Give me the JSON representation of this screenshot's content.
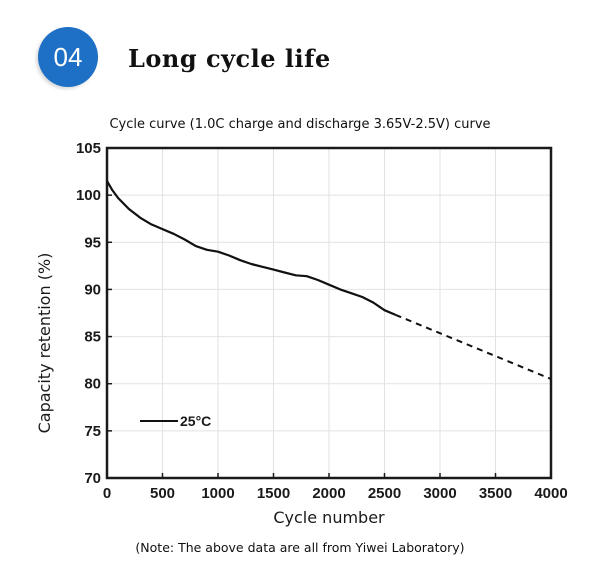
{
  "badge": {
    "number": "04",
    "color": "#1d70c6"
  },
  "heading": "Long cycle life",
  "note": "(Note: The above data are all from Yiwei Laboratory)",
  "chart_data": {
    "type": "line",
    "title": "Cycle curve (1.0C charge and discharge 3.65V-2.5V) curve",
    "xlabel": "Cycle number",
    "ylabel": "Capacity retention (%)",
    "xlim": [
      0,
      4000
    ],
    "ylim": [
      70,
      105
    ],
    "xticks": [
      0,
      500,
      1000,
      1500,
      2000,
      2500,
      3000,
      3500,
      4000
    ],
    "yticks": [
      70,
      75,
      80,
      85,
      90,
      95,
      100,
      105
    ],
    "grid": true,
    "legend_placement": "bottom-left",
    "line_color": "#111111",
    "series": [
      {
        "name": "25°C",
        "style": "solid",
        "x": [
          0,
          50,
          100,
          200,
          300,
          400,
          500,
          600,
          700,
          800,
          900,
          1000,
          1100,
          1200,
          1300,
          1400,
          1500,
          1600,
          1700,
          1800,
          1900,
          2000,
          2100,
          2200,
          2300,
          2400,
          2500,
          2600
        ],
        "y": [
          101.5,
          100.5,
          99.7,
          98.5,
          97.6,
          96.9,
          96.4,
          95.9,
          95.3,
          94.6,
          94.2,
          94.0,
          93.6,
          93.1,
          92.7,
          92.4,
          92.1,
          91.8,
          91.5,
          91.4,
          91.0,
          90.5,
          90.0,
          89.6,
          89.2,
          88.6,
          87.8,
          87.3
        ]
      },
      {
        "name": "",
        "style": "dashed",
        "x": [
          2600,
          4000
        ],
        "y": [
          87.3,
          80.5
        ]
      }
    ]
  }
}
